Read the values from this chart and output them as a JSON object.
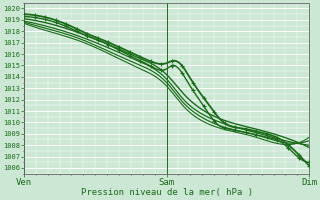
{
  "title": "Pression niveau de la mer( hPa )",
  "bg_color": "#cce8d4",
  "grid_color": "#ffffff",
  "line_color": "#1a6b1a",
  "ylim": [
    1005.5,
    1020.5
  ],
  "yticks": [
    1006,
    1007,
    1008,
    1009,
    1010,
    1011,
    1012,
    1013,
    1014,
    1015,
    1016,
    1017,
    1018,
    1019,
    1020
  ],
  "xtick_labels": [
    "Ven",
    "Sam",
    "Dim"
  ],
  "xtick_positions": [
    0,
    0.5,
    1.0
  ],
  "figsize": [
    3.2,
    2.0
  ],
  "dpi": 100,
  "lines": [
    {
      "points_x": [
        0.0,
        0.08,
        0.16,
        0.22,
        0.28,
        0.36,
        0.44,
        0.5,
        0.52,
        0.55,
        0.58,
        0.62,
        0.65,
        0.68,
        0.72,
        0.76,
        0.8,
        0.85,
        0.9,
        0.95,
        1.0
      ],
      "points_y": [
        1019.5,
        1019.2,
        1018.5,
        1017.8,
        1017.2,
        1016.3,
        1015.4,
        1015.2,
        1015.4,
        1015.1,
        1014.0,
        1012.5,
        1011.5,
        1010.5,
        1009.7,
        1009.5,
        1009.3,
        1009.0,
        1008.5,
        1007.5,
        1006.2
      ],
      "marker": true,
      "lw": 1.3
    },
    {
      "points_x": [
        0.0,
        0.08,
        0.16,
        0.22,
        0.28,
        0.36,
        0.44,
        0.5,
        0.52,
        0.55,
        0.58,
        0.62,
        0.65,
        0.68,
        0.72,
        0.76,
        0.8,
        0.85,
        0.9,
        0.95,
        1.0
      ],
      "points_y": [
        1019.3,
        1019.0,
        1018.3,
        1017.6,
        1017.0,
        1016.0,
        1015.0,
        1014.7,
        1015.0,
        1014.5,
        1013.3,
        1011.8,
        1010.7,
        1009.8,
        1009.4,
        1009.2,
        1009.0,
        1008.7,
        1008.3,
        1007.2,
        1006.5
      ],
      "marker": true,
      "lw": 1.0
    },
    {
      "points_x": [
        0.0,
        0.1,
        0.2,
        0.3,
        0.4,
        0.5,
        0.56,
        0.62,
        0.7,
        0.8,
        0.9,
        1.0
      ],
      "points_y": [
        1019.1,
        1018.6,
        1017.8,
        1016.8,
        1015.7,
        1014.2,
        1012.5,
        1011.2,
        1010.2,
        1009.5,
        1008.8,
        1007.8
      ],
      "marker": false,
      "lw": 1.0
    },
    {
      "points_x": [
        0.0,
        0.1,
        0.2,
        0.3,
        0.4,
        0.5,
        0.56,
        0.62,
        0.7,
        0.8,
        0.9,
        1.0
      ],
      "points_y": [
        1018.9,
        1018.3,
        1017.5,
        1016.5,
        1015.4,
        1013.8,
        1012.0,
        1010.8,
        1009.9,
        1009.2,
        1008.5,
        1008.0
      ],
      "marker": false,
      "lw": 0.9
    },
    {
      "points_x": [
        0.0,
        0.1,
        0.2,
        0.3,
        0.4,
        0.5,
        0.56,
        0.62,
        0.7,
        0.8,
        0.9,
        1.0
      ],
      "points_y": [
        1018.8,
        1018.1,
        1017.3,
        1016.2,
        1015.1,
        1013.5,
        1011.7,
        1010.5,
        1009.6,
        1009.0,
        1008.3,
        1008.4
      ],
      "marker": false,
      "lw": 0.85
    },
    {
      "points_x": [
        0.0,
        0.1,
        0.2,
        0.3,
        0.4,
        0.5,
        0.56,
        0.62,
        0.7,
        0.8,
        0.9,
        1.0
      ],
      "points_y": [
        1018.7,
        1017.9,
        1017.1,
        1016.0,
        1014.8,
        1013.2,
        1011.4,
        1010.2,
        1009.4,
        1008.8,
        1008.1,
        1008.7
      ],
      "marker": false,
      "lw": 0.8
    }
  ]
}
